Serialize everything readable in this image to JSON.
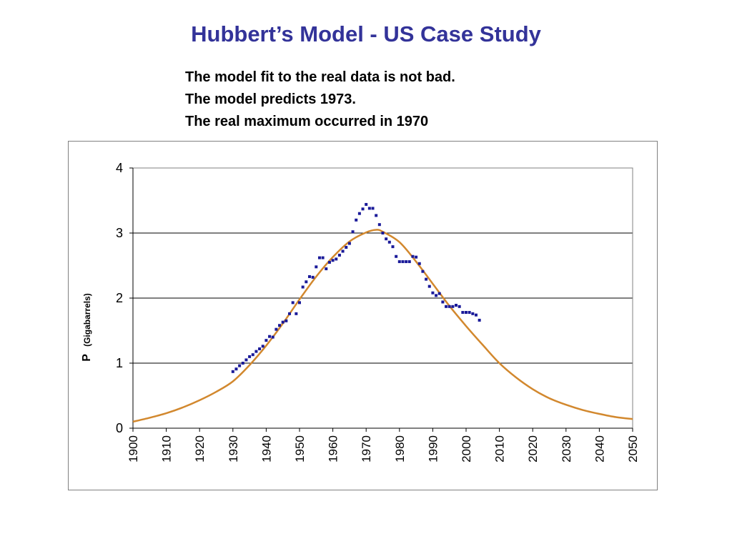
{
  "slide": {
    "title": "Hubbert’s Model - US Case Study",
    "notes": [
      "The model fit to the real data is not bad.",
      "The model predicts 1973.",
      "The real maximum occurred in 1970"
    ]
  },
  "colors": {
    "title": "#333399",
    "model_curve": "#D2882E",
    "real_points": "#1A1A99",
    "gridline": "#000000",
    "plot_border": "#808080"
  },
  "chart_data": {
    "type": "scatter",
    "title": "",
    "xlabel": "",
    "ylabel": "P",
    "ylabel_unit": "(Gigabarrels)",
    "xlim": [
      1900,
      2050
    ],
    "ylim": [
      0,
      4
    ],
    "x_ticks": [
      1900,
      1910,
      1920,
      1930,
      1940,
      1950,
      1960,
      1970,
      1980,
      1990,
      2000,
      2010,
      2020,
      2030,
      2040,
      2050
    ],
    "y_ticks": [
      0,
      1,
      2,
      3,
      4
    ],
    "grid": "horizontal",
    "legend": "none",
    "series": [
      {
        "style": "line",
        "color": "#D2882E",
        "x": [
          1900,
          1905,
          1910,
          1915,
          1920,
          1925,
          1930,
          1935,
          1940,
          1945,
          1950,
          1955,
          1960,
          1965,
          1970,
          1973,
          1975,
          1980,
          1985,
          1990,
          1995,
          2000,
          2005,
          2010,
          2015,
          2020,
          2025,
          2030,
          2035,
          2040,
          2045,
          2050
        ],
        "y": [
          0.1,
          0.16,
          0.23,
          0.32,
          0.43,
          0.56,
          0.72,
          0.97,
          1.27,
          1.61,
          1.98,
          2.33,
          2.63,
          2.87,
          3.01,
          3.05,
          3.02,
          2.86,
          2.56,
          2.22,
          1.88,
          1.57,
          1.28,
          1.0,
          0.78,
          0.6,
          0.46,
          0.36,
          0.28,
          0.22,
          0.17,
          0.14
        ]
      },
      {
        "style": "points",
        "color": "#1A1A99",
        "x": [
          1930,
          1931,
          1932,
          1933,
          1934,
          1935,
          1936,
          1937,
          1938,
          1939,
          1940,
          1941,
          1942,
          1943,
          1944,
          1945,
          1946,
          1947,
          1948,
          1949,
          1950,
          1951,
          1952,
          1953,
          1954,
          1955,
          1956,
          1957,
          1958,
          1959,
          1960,
          1961,
          1962,
          1963,
          1964,
          1965,
          1966,
          1967,
          1968,
          1969,
          1970,
          1971,
          1972,
          1973,
          1974,
          1975,
          1976,
          1977,
          1978,
          1979,
          1980,
          1981,
          1982,
          1983,
          1984,
          1985,
          1986,
          1987,
          1988,
          1989,
          1990,
          1991,
          1992,
          1993,
          1994,
          1995,
          1996,
          1997,
          1998,
          1999,
          2000,
          2001,
          2002,
          2003,
          2004
        ],
        "y": [
          0.87,
          0.91,
          0.96,
          1.0,
          1.05,
          1.1,
          1.13,
          1.18,
          1.22,
          1.26,
          1.35,
          1.41,
          1.4,
          1.52,
          1.58,
          1.63,
          1.65,
          1.76,
          1.93,
          1.76,
          1.93,
          2.17,
          2.25,
          2.33,
          2.32,
          2.48,
          2.62,
          2.62,
          2.45,
          2.55,
          2.58,
          2.6,
          2.66,
          2.72,
          2.78,
          2.84,
          3.02,
          3.2,
          3.3,
          3.37,
          3.44,
          3.38,
          3.38,
          3.27,
          3.13,
          3.0,
          2.91,
          2.86,
          2.79,
          2.64,
          2.56,
          2.56,
          2.56,
          2.56,
          2.64,
          2.63,
          2.53,
          2.41,
          2.29,
          2.18,
          2.08,
          2.04,
          2.07,
          1.94,
          1.87,
          1.87,
          1.87,
          1.89,
          1.87,
          1.78,
          1.78,
          1.78,
          1.76,
          1.74,
          1.66
        ]
      }
    ]
  }
}
